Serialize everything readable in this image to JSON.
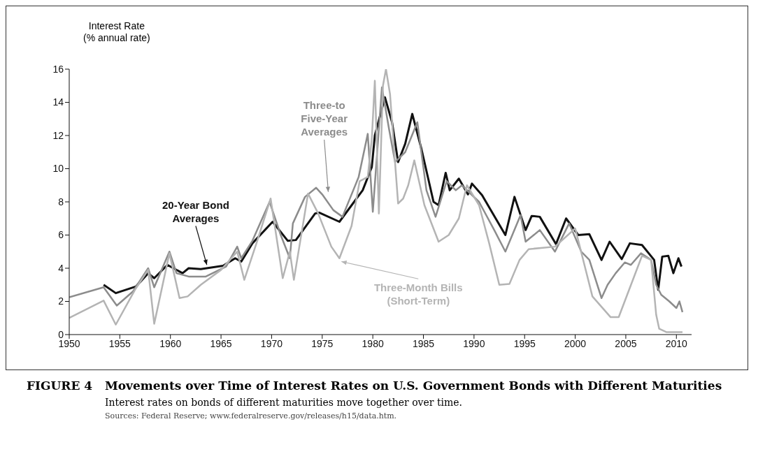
{
  "chart_data": {
    "type": "line",
    "title": "FIGURE 4   Movements over Time of Interest Rates on U.S. Government Bonds with Different Maturities",
    "subtitle": "Interest rates on bonds of different maturities move together over time.",
    "ylabel": "Interest Rate\n(% annual rate)",
    "annotations": [
      "Sources: Federal Reserve; www.federalreserve.gov/releases/h15/data.htm."
    ],
    "xlim": [
      1950,
      2011.5
    ],
    "xticks": [
      1950,
      1955,
      1960,
      1965,
      1970,
      1975,
      1980,
      1985,
      1990,
      1995,
      2000,
      2005,
      2010
    ],
    "ylim": [
      0,
      16
    ],
    "yticks": [
      0,
      2,
      4,
      6,
      8,
      10,
      12,
      14,
      16
    ],
    "grid": false,
    "legend": false,
    "marker": "none",
    "line_style": "solid",
    "series": [
      {
        "name": "20-Year Bond\nAverages",
        "color": "#111111",
        "x": [
          1953.4,
          1954.6,
          1956.6,
          1957.8,
          1958.4,
          1959.7,
          1961.2,
          1961.8,
          1963,
          1965.2,
          1966.4,
          1967,
          1968.1,
          1970.1,
          1971.6,
          1972.4,
          1974.3,
          1974.7,
          1976.7,
          1979,
          1979.9,
          1980.2,
          1981.2,
          1981.9,
          1982.5,
          1983.2,
          1983.9,
          1984.8,
          1986,
          1986.5,
          1987.2,
          1987.6,
          1988.5,
          1989.4,
          1989.8,
          1990.8,
          1993.1,
          1994,
          1995.1,
          1995.7,
          1996.5,
          1998.1,
          1999.1,
          2000.3,
          2001.4,
          2002.6,
          2003.4,
          2004.6,
          2005.4,
          2006.6,
          2007.8,
          2008.2,
          2008.6,
          2009.2,
          2009.7,
          2010.2,
          2010.5
        ],
        "values": [
          3.0,
          2.5,
          2.9,
          3.7,
          3.4,
          4.2,
          3.7,
          4.0,
          3.95,
          4.15,
          4.6,
          4.4,
          5.5,
          6.8,
          5.65,
          5.7,
          7.3,
          7.35,
          6.8,
          8.7,
          10.1,
          12.0,
          14.3,
          12.8,
          10.4,
          11.5,
          13.3,
          11.2,
          8.0,
          7.8,
          9.75,
          8.7,
          9.4,
          8.45,
          9.1,
          8.4,
          6.0,
          8.3,
          6.3,
          7.15,
          7.1,
          5.45,
          7.0,
          6.0,
          6.05,
          4.5,
          5.6,
          4.55,
          5.5,
          5.4,
          4.5,
          2.7,
          4.7,
          4.75,
          3.7,
          4.6,
          4.1
        ]
      },
      {
        "name": "Three-to\nFive-Year\nAverages",
        "color": "#8c8c8c",
        "x": [
          1950,
          1953.4,
          1954.7,
          1956.3,
          1957.8,
          1958.4,
          1959.9,
          1960.6,
          1961.8,
          1963.5,
          1965.5,
          1966.6,
          1967,
          1968.1,
          1969.8,
          1970.9,
          1971.8,
          1972.1,
          1973.3,
          1974.4,
          1975,
          1976.1,
          1977,
          1978.6,
          1979.5,
          1980,
          1980.9,
          1981.6,
          1982.2,
          1983.2,
          1984.4,
          1985.3,
          1986.2,
          1987.3,
          1988.2,
          1988.8,
          1990.5,
          1992,
          1993.1,
          1994.6,
          1995.1,
          1996.5,
          1998,
          1999.4,
          2000.6,
          2001.4,
          2002.6,
          2003.2,
          2004,
          2004.9,
          2005.5,
          2006.5,
          2007.5,
          2008,
          2008.5,
          2009.3,
          2010,
          2010.3,
          2010.6
        ],
        "values": [
          2.25,
          2.85,
          1.75,
          2.6,
          4.0,
          2.85,
          5.0,
          3.7,
          3.5,
          3.5,
          4.1,
          5.3,
          4.6,
          5.65,
          8.0,
          6.0,
          4.6,
          6.7,
          8.3,
          8.85,
          8.45,
          7.5,
          7.1,
          9.5,
          12.1,
          7.4,
          14.9,
          12.4,
          10.4,
          11.0,
          12.8,
          8.7,
          7.1,
          9.25,
          8.7,
          9.0,
          8.0,
          6.3,
          5.0,
          7.2,
          5.6,
          6.3,
          5.0,
          6.7,
          5.0,
          4.5,
          2.2,
          3.0,
          3.7,
          4.35,
          4.2,
          4.9,
          4.5,
          3.0,
          2.4,
          2.0,
          1.6,
          2.0,
          1.35
        ]
      },
      {
        "name": "Three-Month Bills\n(Short-Term)",
        "color": "#b4b4b4",
        "x": [
          1950,
          1953.4,
          1954.6,
          1956.5,
          1957.8,
          1958.4,
          1959.9,
          1960.9,
          1961.7,
          1963,
          1965,
          1966.6,
          1967.3,
          1968.5,
          1969.9,
          1971.1,
          1971.8,
          1972.2,
          1973.6,
          1974.6,
          1975.9,
          1976.7,
          1977.9,
          1978.7,
          1979.5,
          1979.9,
          1980.2,
          1980.6,
          1981,
          1981.3,
          1981.7,
          1982,
          1982.5,
          1983,
          1983.5,
          1984.1,
          1985.1,
          1986.5,
          1987.5,
          1988.5,
          1989.3,
          1990.5,
          1991.5,
          1992.5,
          1993.5,
          1994.5,
          1995.4,
          1998,
          2000,
          2001.7,
          2003.5,
          2004.3,
          2006.6,
          2007.5,
          2008,
          2008.3,
          2009,
          2010.6
        ],
        "values": [
          1.0,
          2.05,
          0.6,
          2.7,
          3.9,
          0.65,
          4.9,
          2.2,
          2.3,
          3.0,
          3.9,
          5.0,
          3.3,
          5.5,
          8.2,
          3.4,
          5.0,
          3.3,
          8.5,
          7.3,
          5.3,
          4.6,
          6.55,
          9.25,
          9.5,
          11.8,
          15.3,
          7.3,
          15.0,
          16.0,
          14.5,
          12.0,
          7.9,
          8.2,
          9.0,
          10.5,
          7.8,
          5.6,
          6.0,
          7.0,
          9.0,
          7.8,
          5.5,
          3.0,
          3.05,
          4.5,
          5.15,
          5.3,
          6.4,
          2.3,
          1.05,
          1.05,
          4.75,
          4.5,
          1.2,
          0.35,
          0.15,
          0.15
        ]
      }
    ]
  }
}
